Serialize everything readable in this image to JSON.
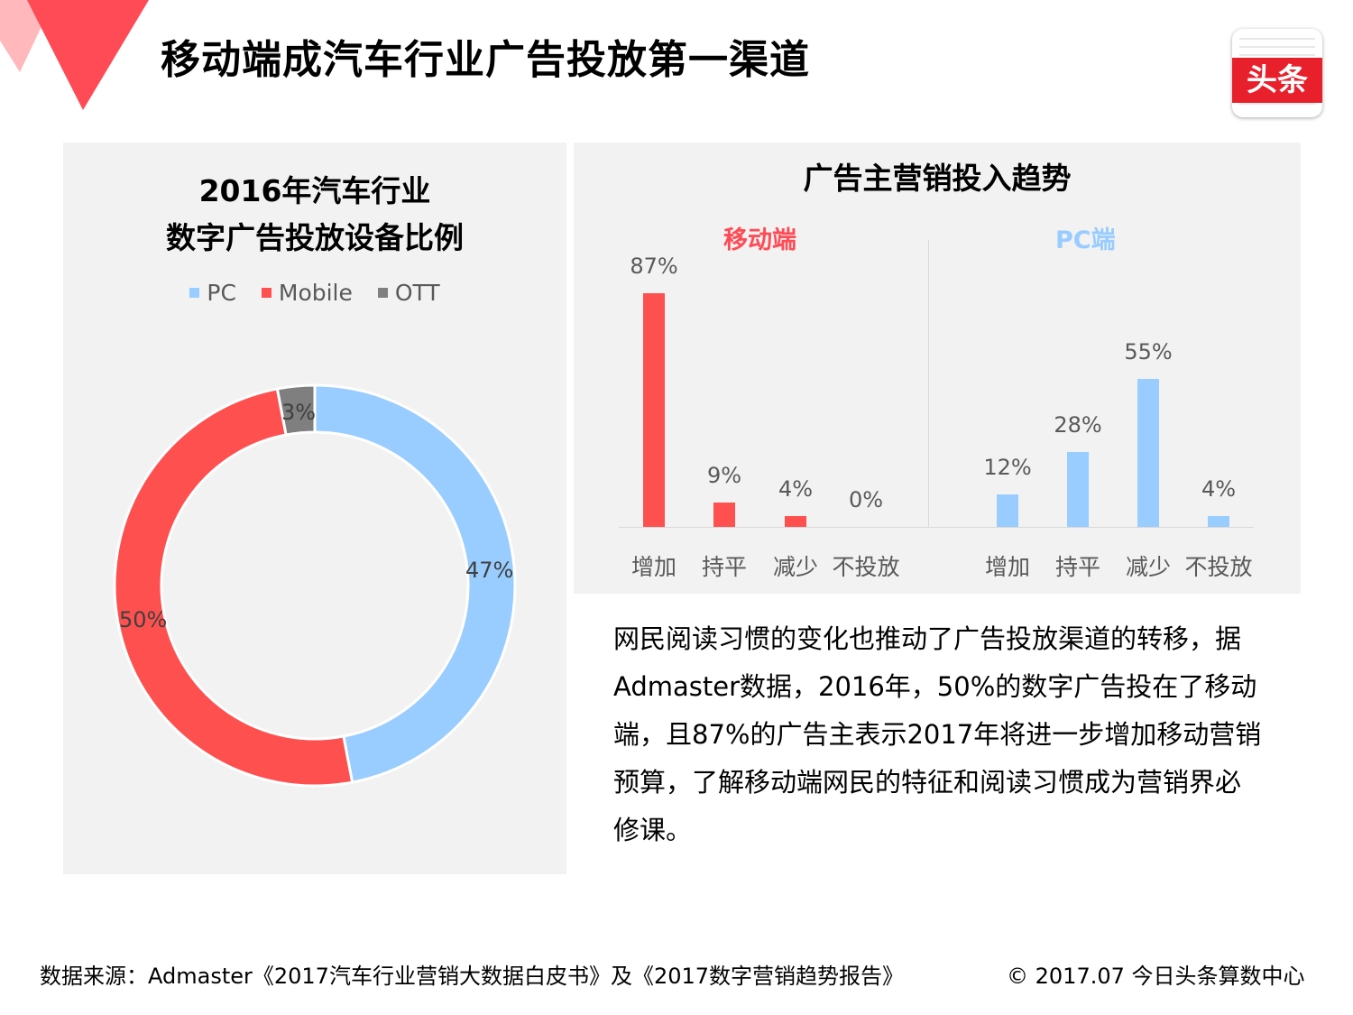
{
  "page_title": "移动端成汽车行业广告投放第一渠道",
  "logo_text": "头条",
  "colors": {
    "pc": "#99ccff",
    "mobile": "#ff5050",
    "ott": "#7f7f7f",
    "accent_red": "#ff4b55",
    "panel_bg": "#f2f2f2"
  },
  "chart_data": [
    {
      "type": "pie",
      "style": "donut",
      "title_lines": [
        "2016年汽车行业",
        "数字广告投放设备比例"
      ],
      "legend_position": "top",
      "slices": [
        {
          "name": "PC",
          "value": 47,
          "label": "47%",
          "color": "#99ccff"
        },
        {
          "name": "Mobile",
          "value": 50,
          "label": "50%",
          "color": "#ff5050"
        },
        {
          "name": "OTT",
          "value": 3,
          "label": "3%",
          "color": "#7f7f7f"
        }
      ]
    },
    {
      "type": "bar",
      "title": "广告主营销投入趋势",
      "ylim": [
        0,
        100
      ],
      "grid": false,
      "groups": [
        {
          "name": "移动端",
          "color": "#ff5050",
          "categories": [
            "增加",
            "持平",
            "减少",
            "不投放"
          ],
          "values": [
            87,
            9,
            4,
            0
          ],
          "labels": [
            "87%",
            "9%",
            "4%",
            "0%"
          ]
        },
        {
          "name": "PC端",
          "color": "#99ccff",
          "categories": [
            "增加",
            "持平",
            "减少",
            "不投放"
          ],
          "values": [
            12,
            28,
            55,
            4
          ],
          "labels": [
            "12%",
            "28%",
            "55%",
            "4%"
          ]
        }
      ]
    }
  ],
  "body_text": "网民阅读习惯的变化也推动了广告投放渠道的转移，据Admaster数据，2016年，50%的数字广告投在了移动端，且87%的广告主表示2017年将进一步增加移动营销预算，了解移动端网民的特征和阅读习惯成为营销界必修课。",
  "footer": {
    "source": "数据来源：Admaster《2017汽车行业营销大数据白皮书》及《2017数字营销趋势报告》",
    "copyright": "© 2017.07 今日头条算数中心"
  }
}
